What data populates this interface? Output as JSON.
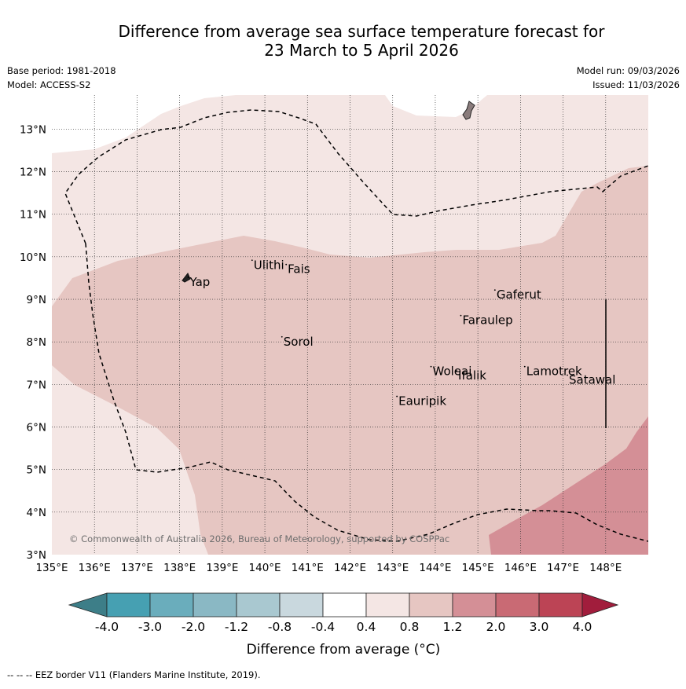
{
  "title": {
    "line1": "Difference from average sea surface temperature forecast for",
    "line2": "23 March to 5 April 2026"
  },
  "meta": {
    "base_period": "Base period: 1981-2018",
    "model": "Model: ACCESS-S2",
    "model_run": "Model run: 09/03/2026",
    "issued": "Issued: 11/03/2026"
  },
  "map": {
    "lon_range": [
      135,
      149
    ],
    "lat_range": [
      3,
      13.8
    ],
    "lon_ticks": [
      "135°E",
      "136°E",
      "137°E",
      "138°E",
      "139°E",
      "140°E",
      "141°E",
      "142°E",
      "143°E",
      "144°E",
      "145°E",
      "146°E",
      "147°E",
      "148°E"
    ],
    "lat_ticks": [
      "3°N",
      "4°N",
      "5°N",
      "6°N",
      "7°N",
      "8°N",
      "9°N",
      "10°N",
      "11°N",
      "12°N",
      "13°N"
    ],
    "places": [
      {
        "name": "Yap",
        "lon": 138.2,
        "lat": 9.5
      },
      {
        "name": "Ulithi",
        "lon": 139.7,
        "lat": 9.9
      },
      {
        "name": "Fais",
        "lon": 140.5,
        "lat": 9.8
      },
      {
        "name": "Gaferut",
        "lon": 145.4,
        "lat": 9.2
      },
      {
        "name": "Faraulep",
        "lon": 144.6,
        "lat": 8.6
      },
      {
        "name": "Sorol",
        "lon": 140.4,
        "lat": 8.1
      },
      {
        "name": "Lamotrek",
        "lon": 146.1,
        "lat": 7.4
      },
      {
        "name": "Woleai",
        "lon": 143.9,
        "lat": 7.4
      },
      {
        "name": "Ifalik",
        "lon": 144.5,
        "lat": 7.3
      },
      {
        "name": "Satawal",
        "lon": 147.1,
        "lat": 7.2
      },
      {
        "name": "Eauripik",
        "lon": 143.1,
        "lat": 6.7
      }
    ],
    "copyright": "© Commonwealth of Australia 2026, Bureau of Meteorology, supported by COSPPac"
  },
  "colorbar": {
    "label": "Difference from average (°C)",
    "ticks": [
      "-4.0",
      "-3.0",
      "-2.0",
      "-1.2",
      "-0.8",
      "-0.4",
      "0.4",
      "0.8",
      "1.2",
      "2.0",
      "3.0",
      "4.0"
    ],
    "colors": [
      "#3d7e88",
      "#46a0b2",
      "#6aadbc",
      "#8ab8c4",
      "#a9c8d0",
      "#c9d8de",
      "#ffffff",
      "#f4e6e4",
      "#e6c6c2",
      "#d48f96",
      "#c96a74",
      "#bc4455",
      "#a11d3c"
    ]
  },
  "legend_note": "--  --  -- EEZ border V11 (Flanders Marine Institute, 2019)."
}
